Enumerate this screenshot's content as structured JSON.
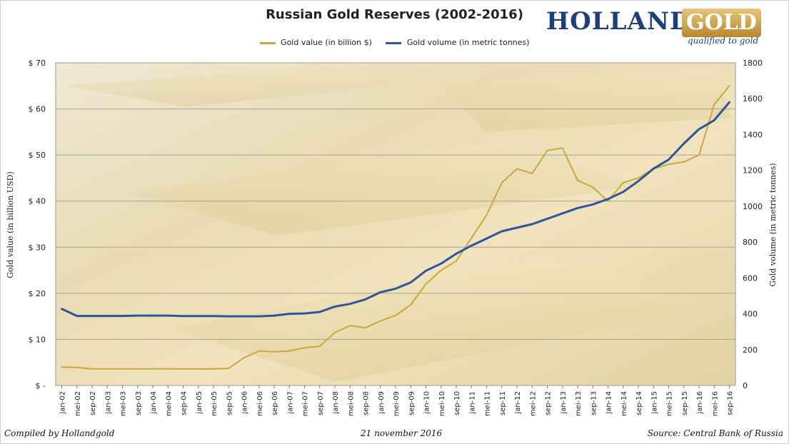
{
  "header": {
    "title": "Russian Gold Reserves (2002-2016)",
    "logo_main": "HOLLAND",
    "logo_gold": "GOLD",
    "logo_tagline": "qualified to gold"
  },
  "footer": {
    "left": "Compiled by Hollandgold",
    "center": "21 november 2016",
    "right": "Source: Central Bank of Russia"
  },
  "colors": {
    "gold_series": "#c9a83c",
    "volume_series": "#2e5597",
    "gridline": "#8c8c8c"
  },
  "chart_data": {
    "type": "line",
    "title": "Russian Gold Reserves (2002-2016)",
    "ylabel_left": "Gold value (in billion USD)",
    "ylabel_right": "Gold volume (in metric tonnes)",
    "ylim_left": [
      0,
      70
    ],
    "ylim_right": [
      0,
      1800
    ],
    "yticks_left": [
      "$ -",
      "$ 10",
      "$ 20",
      "$ 30",
      "$ 40",
      "$ 50",
      "$ 60",
      "$ 70"
    ],
    "yticks_right": [
      "0",
      "200",
      "400",
      "600",
      "800",
      "1000",
      "1200",
      "1400",
      "1600",
      "1800"
    ],
    "grid": "horizontal",
    "legend_position": "top",
    "x_ticks": [
      "jan-02",
      "mei-02",
      "sep-02",
      "jan-03",
      "mei-03",
      "sep-03",
      "jan-04",
      "mei-04",
      "sep-04",
      "jan-05",
      "mei-05",
      "sep-05",
      "jan-06",
      "mei-06",
      "sep-06",
      "jan-07",
      "mei-07",
      "sep-07",
      "jan-08",
      "mei-08",
      "sep-08",
      "jan-09",
      "mei-09",
      "sep-09",
      "jan-10",
      "mei-10",
      "sep-10",
      "jan-11",
      "mei-11",
      "sep-11",
      "jan-12",
      "mei-12",
      "sep-12",
      "jan-13",
      "mei-13",
      "sep-13",
      "jan-14",
      "mei-14",
      "sep-14",
      "jan-15",
      "mei-15",
      "sep-15",
      "jan-16",
      "mei-16",
      "sep-16"
    ],
    "series": [
      {
        "name": "Gold value (in billion $)",
        "axis": "left",
        "points": [
          [
            "jan-02",
            4.0
          ],
          [
            "mei-02",
            3.9
          ],
          [
            "sep-02",
            3.6
          ],
          [
            "jan-03",
            3.6
          ],
          [
            "mei-03",
            3.6
          ],
          [
            "sep-03",
            3.6
          ],
          [
            "jan-04",
            3.6
          ],
          [
            "mei-04",
            3.6
          ],
          [
            "sep-04",
            3.6
          ],
          [
            "jan-05",
            3.6
          ],
          [
            "mei-05",
            3.6
          ],
          [
            "sep-05",
            3.7
          ],
          [
            "jan-06",
            6.0
          ],
          [
            "mei-06",
            7.5
          ],
          [
            "sep-06",
            7.3
          ],
          [
            "jan-07",
            7.5
          ],
          [
            "mei-07",
            8.2
          ],
          [
            "sep-07",
            8.5
          ],
          [
            "jan-08",
            11.5
          ],
          [
            "mei-08",
            13.0
          ],
          [
            "sep-08",
            12.5
          ],
          [
            "jan-09",
            14.0
          ],
          [
            "mei-09",
            15.2
          ],
          [
            "sep-09",
            17.5
          ],
          [
            "jan-10",
            22.0
          ],
          [
            "mei-10",
            25.0
          ],
          [
            "sep-10",
            27.0
          ],
          [
            "jan-11",
            32.0
          ],
          [
            "mei-11",
            37.0
          ],
          [
            "sep-11",
            44.0
          ],
          [
            "jan-12",
            47.0
          ],
          [
            "mei-12",
            46.0
          ],
          [
            "sep-12",
            51.0
          ],
          [
            "jan-13",
            51.5
          ],
          [
            "mei-13",
            44.5
          ],
          [
            "sep-13",
            43.0
          ],
          [
            "jan-14",
            40.0
          ],
          [
            "mei-14",
            44.0
          ],
          [
            "sep-14",
            45.0
          ],
          [
            "jan-15",
            47.0
          ],
          [
            "mei-15",
            48.0
          ],
          [
            "sep-15",
            48.5
          ],
          [
            "jan-16",
            50.0
          ],
          [
            "mei-16",
            61.0
          ],
          [
            "sep-16",
            65.0
          ]
        ]
      },
      {
        "name": "Gold volume (in metric tonnes)",
        "axis": "right",
        "points": [
          [
            "jan-02",
            427
          ],
          [
            "mei-02",
            388
          ],
          [
            "sep-02",
            388
          ],
          [
            "jan-03",
            388
          ],
          [
            "mei-03",
            388
          ],
          [
            "sep-03",
            390
          ],
          [
            "jan-04",
            390
          ],
          [
            "mei-04",
            390
          ],
          [
            "sep-04",
            387
          ],
          [
            "jan-05",
            387
          ],
          [
            "mei-05",
            387
          ],
          [
            "sep-05",
            386
          ],
          [
            "jan-06",
            386
          ],
          [
            "mei-06",
            386
          ],
          [
            "sep-06",
            390
          ],
          [
            "jan-07",
            400
          ],
          [
            "mei-07",
            402
          ],
          [
            "sep-07",
            410
          ],
          [
            "jan-08",
            440
          ],
          [
            "mei-08",
            455
          ],
          [
            "sep-08",
            480
          ],
          [
            "jan-09",
            520
          ],
          [
            "mei-09",
            540
          ],
          [
            "sep-09",
            575
          ],
          [
            "jan-10",
            640
          ],
          [
            "mei-10",
            680
          ],
          [
            "sep-10",
            735
          ],
          [
            "jan-11",
            780
          ],
          [
            "mei-11",
            820
          ],
          [
            "sep-11",
            860
          ],
          [
            "jan-12",
            880
          ],
          [
            "mei-12",
            900
          ],
          [
            "sep-12",
            930
          ],
          [
            "jan-13,",
            960
          ],
          [
            "mei-13",
            990
          ],
          [
            "sep-13",
            1010
          ],
          [
            "jan-14",
            1040
          ],
          [
            "mei-14",
            1080
          ],
          [
            "sep-14",
            1140
          ],
          [
            "jan-15",
            1210
          ],
          [
            "mei-15",
            1260
          ],
          [
            "sep-15",
            1350
          ],
          [
            "jan-16",
            1430
          ],
          [
            "mei-16",
            1480
          ],
          [
            "sep-16",
            1580
          ]
        ]
      }
    ]
  }
}
